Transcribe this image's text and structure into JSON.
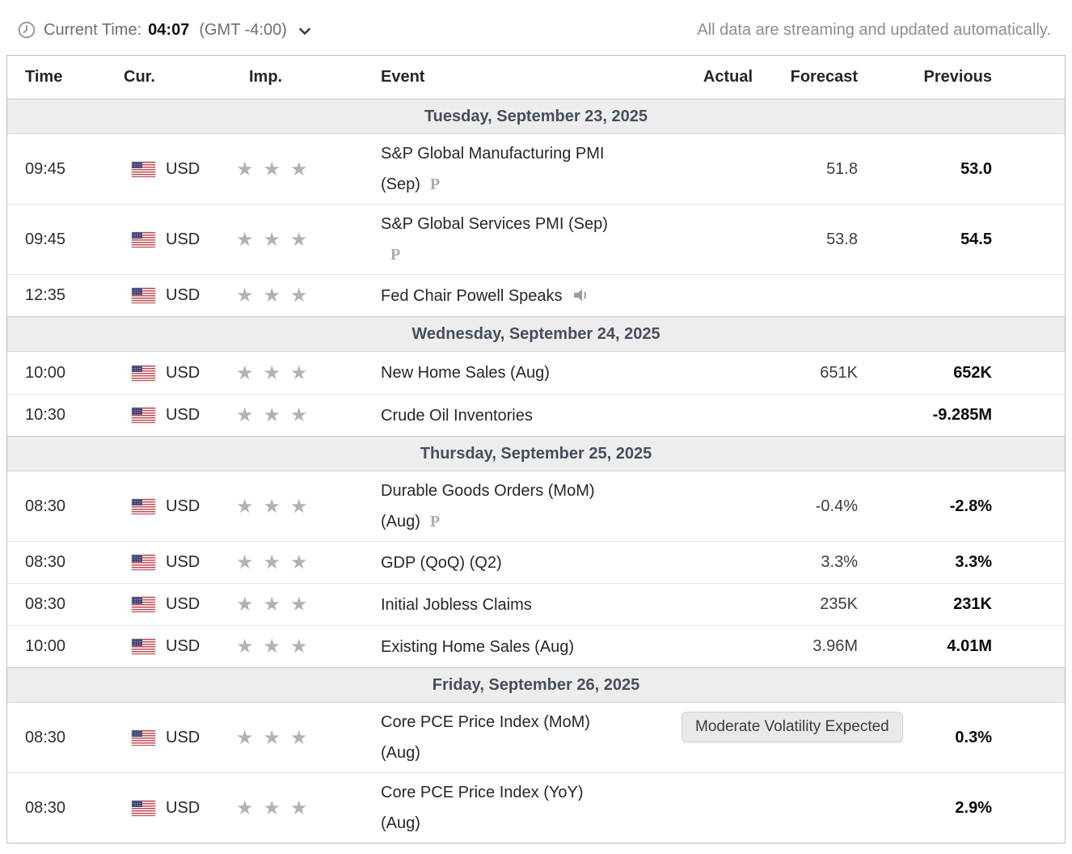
{
  "header_bar": {
    "current_time_label": "Current Time:",
    "current_time_value": "04:07",
    "timezone": "(GMT -4:00)",
    "streaming_note": "All data are streaming and updated automatically."
  },
  "tooltip": {
    "text": "Moderate Volatility Expected"
  },
  "icons": {
    "clock": "clock-icon",
    "chevron": "chevron-down-icon",
    "flag": "us-flag-icon",
    "star": "star-icon",
    "preliminary": "preliminary-p-icon",
    "speaker": "speaker-icon"
  },
  "colors": {
    "star_gray": "#b2b2b2",
    "date_row_bg": "#ededed",
    "date_row_text": "#454f5d",
    "muted_text": "#8d8d8d",
    "tooltip_bg": "#e9e9e9"
  },
  "table": {
    "columns": [
      "Time",
      "Cur.",
      "Imp.",
      "Event",
      "Actual",
      "Forecast",
      "Previous"
    ],
    "sections": [
      {
        "date": "Tuesday, September 23, 2025",
        "rows": [
          {
            "time": "09:45",
            "currency": "USD",
            "importance": 3,
            "event_lines": [
              "S&P Global Manufacturing PMI",
              "(Sep)"
            ],
            "marker": "preliminary",
            "actual": "",
            "forecast": "51.8",
            "previous": "53.0"
          },
          {
            "time": "09:45",
            "currency": "USD",
            "importance": 3,
            "event_lines": [
              "S&P Global Services PMI (Sep)",
              ""
            ],
            "marker": "preliminary",
            "actual": "",
            "forecast": "53.8",
            "previous": "54.5"
          },
          {
            "time": "12:35",
            "currency": "USD",
            "importance": 3,
            "event_lines": [
              "Fed Chair Powell Speaks"
            ],
            "marker": "speech",
            "actual": "",
            "forecast": "",
            "previous": ""
          }
        ]
      },
      {
        "date": "Wednesday, September 24, 2025",
        "rows": [
          {
            "time": "10:00",
            "currency": "USD",
            "importance": 3,
            "event_lines": [
              "New Home Sales (Aug)"
            ],
            "marker": "",
            "actual": "",
            "forecast": "651K",
            "previous": "652K"
          },
          {
            "time": "10:30",
            "currency": "USD",
            "importance": 3,
            "event_lines": [
              "Crude Oil Inventories"
            ],
            "marker": "",
            "actual": "",
            "forecast": "",
            "previous": "-9.285M"
          }
        ]
      },
      {
        "date": "Thursday, September 25, 2025",
        "rows": [
          {
            "time": "08:30",
            "currency": "USD",
            "importance": 3,
            "event_lines": [
              "Durable Goods Orders (MoM)",
              "(Aug)"
            ],
            "marker": "preliminary",
            "actual": "",
            "forecast": "-0.4%",
            "previous": "-2.8%"
          },
          {
            "time": "08:30",
            "currency": "USD",
            "importance": 3,
            "event_lines": [
              "GDP (QoQ) (Q2)"
            ],
            "marker": "",
            "actual": "",
            "forecast": "3.3%",
            "previous": "3.3%"
          },
          {
            "time": "08:30",
            "currency": "USD",
            "importance": 3,
            "event_lines": [
              "Initial Jobless Claims"
            ],
            "marker": "",
            "actual": "",
            "forecast": "235K",
            "previous": "231K"
          },
          {
            "time": "10:00",
            "currency": "USD",
            "importance": 3,
            "event_lines": [
              "Existing Home Sales (Aug)"
            ],
            "marker": "",
            "actual": "",
            "forecast": "3.96M",
            "previous": "4.01M"
          }
        ]
      },
      {
        "date": "Friday, September 26, 2025",
        "rows": [
          {
            "time": "08:30",
            "currency": "USD",
            "importance": 3,
            "event_lines": [
              "Core PCE Price Index (MoM)",
              "(Aug)"
            ],
            "marker": "",
            "actual": "",
            "forecast": "",
            "previous": "0.3%"
          },
          {
            "time": "08:30",
            "currency": "USD",
            "importance": 3,
            "event_lines": [
              "Core PCE Price Index (YoY)",
              "(Aug)"
            ],
            "marker": "",
            "actual": "",
            "forecast": "",
            "previous": "2.9%"
          }
        ]
      }
    ]
  }
}
